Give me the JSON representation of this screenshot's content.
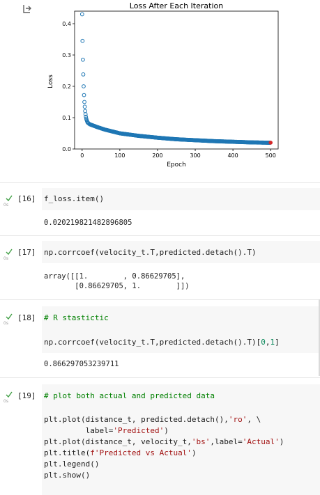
{
  "plot": {
    "title": "Loss After Each Iteration",
    "xlabel": "Epoch",
    "ylabel": "Loss",
    "xticks": [
      "0",
      "100",
      "200",
      "300",
      "400",
      "500"
    ],
    "yticks": [
      "0.0",
      "0.1",
      "0.2",
      "0.3",
      "0.4"
    ]
  },
  "chart_data": {
    "type": "scatter",
    "title": "Loss After Each Iteration",
    "xlabel": "Epoch",
    "ylabel": "Loss",
    "xlim": [
      -20,
      520
    ],
    "ylim": [
      0,
      0.44
    ],
    "marker_color": "#1f77b4",
    "final_marker_color": "#d62728",
    "early_points": [
      [
        0,
        0.43
      ],
      [
        1,
        0.345
      ],
      [
        2,
        0.285
      ],
      [
        3,
        0.238
      ],
      [
        4,
        0.2
      ],
      [
        5,
        0.172
      ],
      [
        6,
        0.15
      ],
      [
        7,
        0.135
      ],
      [
        8,
        0.121
      ],
      [
        9,
        0.111
      ],
      [
        10,
        0.103
      ],
      [
        11,
        0.097
      ],
      [
        12,
        0.092
      ],
      [
        13,
        0.089
      ],
      [
        14,
        0.086
      ],
      [
        15,
        0.084
      ],
      [
        16,
        0.083
      ],
      [
        18,
        0.081
      ],
      [
        20,
        0.079
      ]
    ],
    "curve_points": [
      [
        20,
        0.079
      ],
      [
        40,
        0.07
      ],
      [
        60,
        0.062
      ],
      [
        80,
        0.056
      ],
      [
        100,
        0.05
      ],
      [
        150,
        0.042
      ],
      [
        200,
        0.036
      ],
      [
        250,
        0.031
      ],
      [
        300,
        0.028
      ],
      [
        350,
        0.025
      ],
      [
        400,
        0.023
      ],
      [
        450,
        0.021
      ],
      [
        500,
        0.02
      ]
    ],
    "final_point": [
      500,
      0.0202
    ]
  },
  "cells": [
    {
      "count": "[16]",
      "time": "0s",
      "code": [
        "f_loss.item()"
      ],
      "output": [
        "0.020219821482896805"
      ]
    },
    {
      "count": "[17]",
      "time": "0s",
      "code": [
        "np.corrcoef(velocity_t.T,predicted.detach().T)"
      ],
      "output": [
        "array([[1.        , 0.86629705],",
        "       [0.86629705, 1.        ]])"
      ]
    },
    {
      "count": "[18]",
      "time": "0s",
      "code": [
        "# R stastictic",
        "",
        "np.corrcoef(velocity_t.T,predicted.detach().T)[0,1]"
      ],
      "output": [
        "0.866297053239711"
      ]
    },
    {
      "count": "[19]",
      "time": "0s",
      "code": [
        "# plot both actual and predicted data",
        "",
        "plt.plot(distance_t, predicted.detach(),'ro', \\",
        "         label='Predicted')",
        "plt.plot(distance_t, velocity_t,'bs',label='Actual')",
        "plt.title(f'Predicted vs Actual')",
        "plt.legend()",
        "plt.show()"
      ]
    }
  ]
}
